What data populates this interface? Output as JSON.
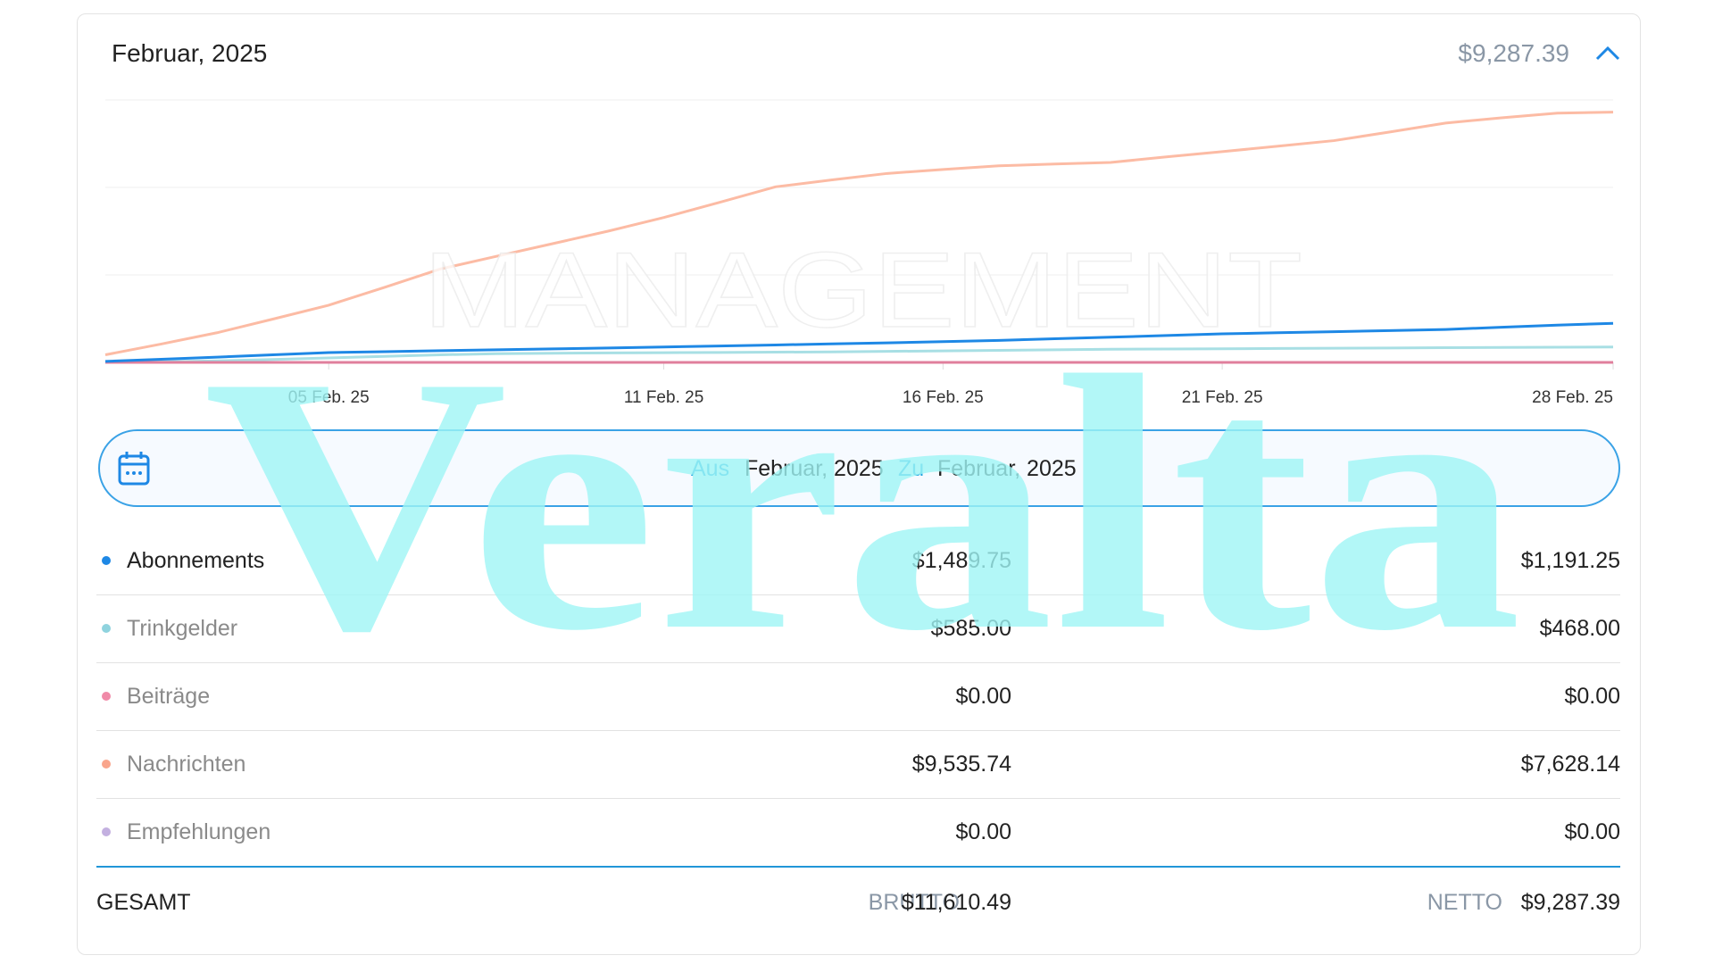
{
  "header": {
    "title": "Februar, 2025",
    "amount": "$9,287.39"
  },
  "chart_data": {
    "type": "line",
    "categories": [
      null,
      null,
      null,
      null,
      "05 Feb. 25",
      null,
      null,
      null,
      null,
      null,
      "11 Feb. 25",
      null,
      null,
      null,
      null,
      "16 Feb. 25",
      null,
      null,
      null,
      null,
      "21 Feb. 25",
      null,
      null,
      null,
      null,
      null,
      null,
      "28 Feb. 25"
    ],
    "ylim": [
      0,
      10000
    ],
    "yticks": [
      0,
      3333,
      6667,
      10000
    ],
    "grid": true,
    "series": [
      {
        "color": "#fcbba4",
        "values": [
          290,
          700,
          1130,
          1650,
          2180,
          2860,
          3560,
          4040,
          4520,
          5000,
          5520,
          6100,
          6690,
          6950,
          7200,
          7350,
          7490,
          7560,
          7620,
          7830,
          8030,
          8240,
          8450,
          8780,
          9120,
          9320,
          9500,
          9536
        ]
      },
      {
        "color": "#a8dfe4",
        "values": [
          0,
          20,
          60,
          110,
          170,
          230,
          290,
          330,
          350,
          360,
          370,
          380,
          390,
          400,
          420,
          440,
          460,
          480,
          500,
          510,
          520,
          530,
          540,
          550,
          560,
          570,
          580,
          585
        ]
      },
      {
        "color": "#e07f9c",
        "values": [
          0,
          0,
          0,
          0,
          0,
          0,
          0,
          0,
          0,
          0,
          0,
          0,
          0,
          0,
          0,
          0,
          0,
          0,
          0,
          0,
          0,
          0,
          0,
          0,
          0,
          0,
          0,
          0
        ]
      },
      {
        "color": "#1e88e5",
        "values": [
          40,
          120,
          200,
          290,
          375,
          410,
          445,
          480,
          515,
          550,
          586,
          625,
          665,
          705,
          745,
          790,
          837,
          900,
          960,
          1025,
          1088,
          1130,
          1170,
          1210,
          1255,
          1340,
          1420,
          1490
        ]
      }
    ]
  },
  "date_range": {
    "from_label": "Aus",
    "from": "Februar, 2025",
    "to_label": "Zu",
    "to": "Februar, 2025"
  },
  "table": {
    "rows": [
      {
        "name": "Abonnements",
        "color": "#1e88e5",
        "gross": "$1,489.75",
        "net": "$1,191.25"
      },
      {
        "name": "Trinkgelder",
        "color": "#8fd3de",
        "gross": "$585.00",
        "net": "$468.00"
      },
      {
        "name": "Beiträge",
        "color": "#f08aa8",
        "gross": "$0.00",
        "net": "$0.00"
      },
      {
        "name": "Nachrichten",
        "color": "#f9a58c",
        "gross": "$9,535.74",
        "net": "$7,628.14"
      },
      {
        "name": "Empfehlungen",
        "color": "#c3b0e0",
        "gross": "$0.00",
        "net": "$0.00"
      }
    ],
    "total": {
      "label": "GESAMT",
      "gross_label": "BRUTTO",
      "gross": "$11,610.49",
      "net_label": "NETTO",
      "net": "$9,287.39"
    }
  },
  "watermark": {
    "brand": "Veralta",
    "sub": "MANAGEMENT"
  }
}
